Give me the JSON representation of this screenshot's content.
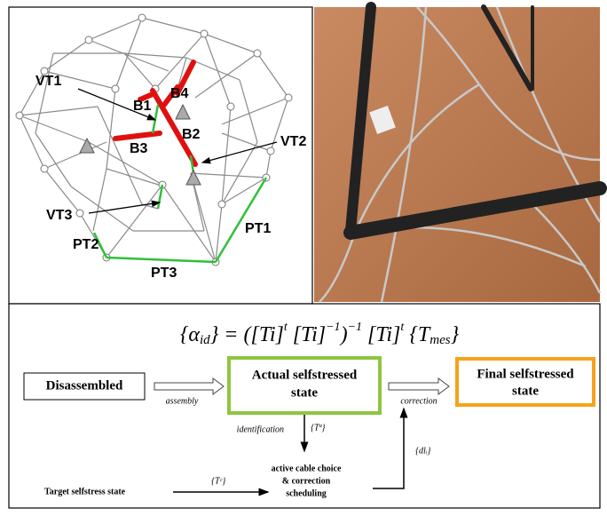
{
  "structure": {
    "labels": [
      "VT1",
      "B1",
      "B4",
      "B2",
      "B3",
      "VT2",
      "VT3",
      "PT1",
      "PT2",
      "PT3"
    ]
  },
  "formula": [
    "{α",
    "id",
    "} = ([Ti]",
    "t",
    " [Ti]",
    "−1",
    ")",
    "−1",
    " [Ti]",
    "t",
    " {T",
    "mes",
    "}"
  ],
  "flow": {
    "disassembled": "Disassembled",
    "assembly": "assembly",
    "actual": [
      "Actual selfstressed",
      "state"
    ],
    "correction": "correction",
    "final": [
      "Final selfstressed",
      "state"
    ],
    "identification": "identification",
    "t_a": "{Tª}",
    "active": [
      "active cable choice",
      "& correction",
      "scheduling"
    ],
    "target": "Target selfstress state",
    "t_c": "{Tᶜ}",
    "dl": "{dlᵢ}"
  }
}
